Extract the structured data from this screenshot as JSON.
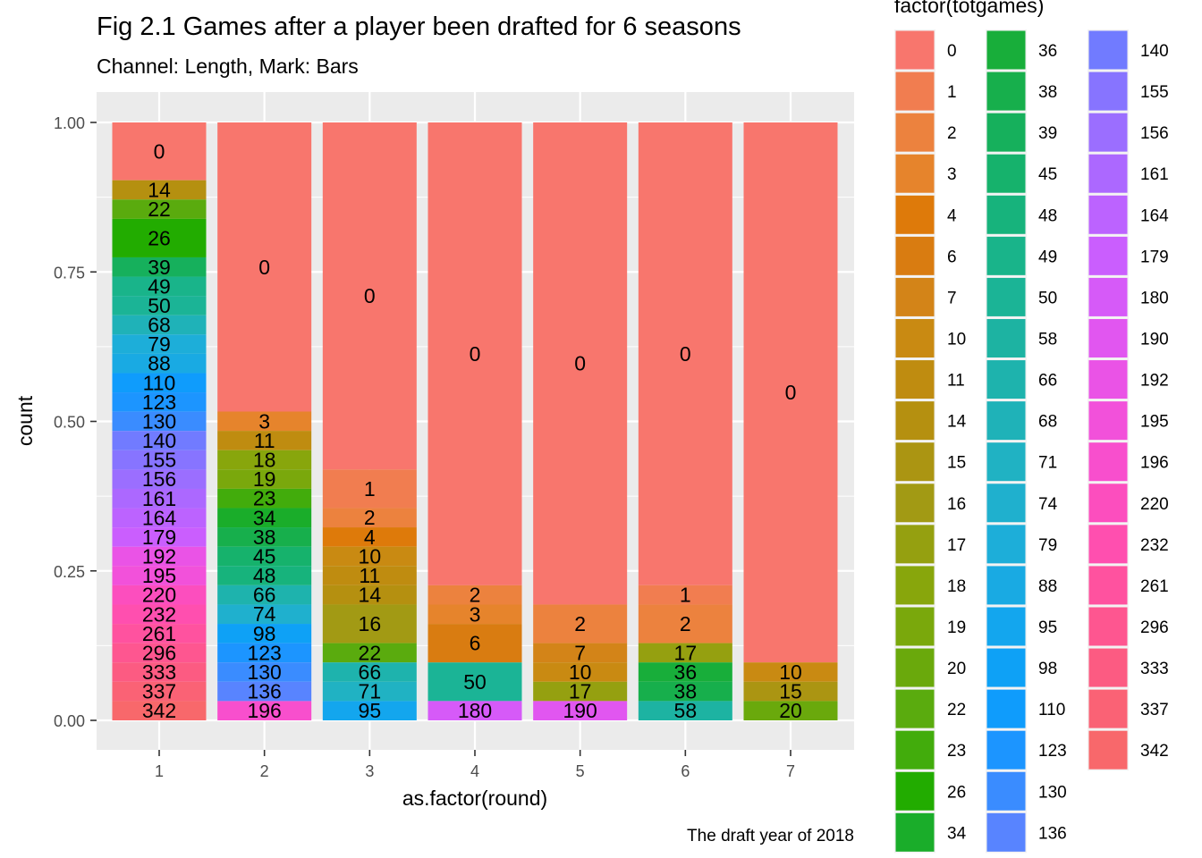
{
  "chart_data": {
    "type": "bar",
    "stacking": "fill",
    "title": "Fig 2.1 Games after a player been drafted for 6 seasons",
    "subtitle": "Channel: Length, Mark: Bars",
    "xlabel": "as.factor(round)",
    "ylabel": "count",
    "caption": "The draft year of 2018",
    "ylim": [
      0,
      1
    ],
    "y_ticks": [
      "0.00",
      "0.25",
      "0.50",
      "0.75",
      "1.00"
    ],
    "categories": [
      "1",
      "2",
      "3",
      "4",
      "5",
      "6",
      "7"
    ],
    "grid": true,
    "legend": {
      "title": "factor(totgames)",
      "placement": "right",
      "columns": 3,
      "entries": [
        {
          "label": "0",
          "color": "#F8766D"
        },
        {
          "label": "1",
          "color": "#F17D50"
        },
        {
          "label": "2",
          "color": "#EC823E"
        },
        {
          "label": "3",
          "color": "#E6842C"
        },
        {
          "label": "4",
          "color": "#DE7A0A"
        },
        {
          "label": "6",
          "color": "#D97C11"
        },
        {
          "label": "7",
          "color": "#D38418"
        },
        {
          "label": "10",
          "color": "#C98A12"
        },
        {
          "label": "11",
          "color": "#BF8C10"
        },
        {
          "label": "14",
          "color": "#B59010"
        },
        {
          "label": "15",
          "color": "#AB9512"
        },
        {
          "label": "16",
          "color": "#A29A14"
        },
        {
          "label": "17",
          "color": "#95A010"
        },
        {
          "label": "18",
          "color": "#88A60C"
        },
        {
          "label": "19",
          "color": "#7AA80C"
        },
        {
          "label": "20",
          "color": "#6AA90C"
        },
        {
          "label": "22",
          "color": "#5AAB0E"
        },
        {
          "label": "23",
          "color": "#42AC0C"
        },
        {
          "label": "26",
          "color": "#22AC00"
        },
        {
          "label": "34",
          "color": "#1AAD2A"
        },
        {
          "label": "36",
          "color": "#18AE3A"
        },
        {
          "label": "38",
          "color": "#17AF4C"
        },
        {
          "label": "39",
          "color": "#16B05C"
        },
        {
          "label": "45",
          "color": "#16B26C"
        },
        {
          "label": "48",
          "color": "#17B37C"
        },
        {
          "label": "49",
          "color": "#19B48A"
        },
        {
          "label": "50",
          "color": "#1BB496"
        },
        {
          "label": "58",
          "color": "#1DB3A2"
        },
        {
          "label": "66",
          "color": "#1EB3AD"
        },
        {
          "label": "68",
          "color": "#1FB2B8"
        },
        {
          "label": "71",
          "color": "#20B2C3"
        },
        {
          "label": "74",
          "color": "#1FB0CE"
        },
        {
          "label": "79",
          "color": "#1DAED9"
        },
        {
          "label": "88",
          "color": "#19AAE3"
        },
        {
          "label": "95",
          "color": "#13A6EE"
        },
        {
          "label": "98",
          "color": "#0EA1F6"
        },
        {
          "label": "110",
          "color": "#0F9CFC"
        },
        {
          "label": "123",
          "color": "#1C95FF"
        },
        {
          "label": "130",
          "color": "#3A8CFF"
        },
        {
          "label": "136",
          "color": "#5884FF"
        },
        {
          "label": "140",
          "color": "#717BFF"
        },
        {
          "label": "155",
          "color": "#8774FF"
        },
        {
          "label": "156",
          "color": "#9B6EFF"
        },
        {
          "label": "161",
          "color": "#AC68FF"
        },
        {
          "label": "164",
          "color": "#BC63FF"
        },
        {
          "label": "179",
          "color": "#CA5EFE"
        },
        {
          "label": "180",
          "color": "#D65AF8"
        },
        {
          "label": "190",
          "color": "#E156F0"
        },
        {
          "label": "192",
          "color": "#EA53E6"
        },
        {
          "label": "195",
          "color": "#F251DA"
        },
        {
          "label": "196",
          "color": "#F84FCD"
        },
        {
          "label": "220",
          "color": "#FC4EBE"
        },
        {
          "label": "232",
          "color": "#FF4FAF"
        },
        {
          "label": "261",
          "color": "#FF529F"
        },
        {
          "label": "296",
          "color": "#FE5690"
        },
        {
          "label": "333",
          "color": "#FC5B82"
        },
        {
          "label": "337",
          "color": "#FA6275"
        },
        {
          "label": "342",
          "color": "#F8686B"
        }
      ]
    },
    "series": [
      {
        "category": "1",
        "segments": [
          {
            "label": "0",
            "value": 0.0968
          },
          {
            "label": "14",
            "value": 0.0323
          },
          {
            "label": "22",
            "value": 0.0323
          },
          {
            "label": "26",
            "value": 0.0645
          },
          {
            "label": "39",
            "value": 0.0323
          },
          {
            "label": "49",
            "value": 0.0323
          },
          {
            "label": "50",
            "value": 0.0323
          },
          {
            "label": "68",
            "value": 0.0323
          },
          {
            "label": "79",
            "value": 0.0323
          },
          {
            "label": "88",
            "value": 0.0323
          },
          {
            "label": "110",
            "value": 0.0323
          },
          {
            "label": "123",
            "value": 0.0323
          },
          {
            "label": "130",
            "value": 0.0323
          },
          {
            "label": "140",
            "value": 0.0323
          },
          {
            "label": "155",
            "value": 0.0323
          },
          {
            "label": "156",
            "value": 0.0323
          },
          {
            "label": "161",
            "value": 0.0323
          },
          {
            "label": "164",
            "value": 0.0323
          },
          {
            "label": "179",
            "value": 0.0323
          },
          {
            "label": "192",
            "value": 0.0323
          },
          {
            "label": "195",
            "value": 0.0323
          },
          {
            "label": "220",
            "value": 0.0323
          },
          {
            "label": "232",
            "value": 0.0323
          },
          {
            "label": "261",
            "value": 0.0323
          },
          {
            "label": "296",
            "value": 0.0323
          },
          {
            "label": "333",
            "value": 0.0323
          },
          {
            "label": "337",
            "value": 0.0323
          },
          {
            "label": "342",
            "value": 0.0323
          }
        ]
      },
      {
        "category": "2",
        "segments": [
          {
            "label": "0",
            "value": 0.4839
          },
          {
            "label": "3",
            "value": 0.0323
          },
          {
            "label": "11",
            "value": 0.0323
          },
          {
            "label": "18",
            "value": 0.0323
          },
          {
            "label": "19",
            "value": 0.0323
          },
          {
            "label": "23",
            "value": 0.0323
          },
          {
            "label": "34",
            "value": 0.0323
          },
          {
            "label": "38",
            "value": 0.0323
          },
          {
            "label": "45",
            "value": 0.0323
          },
          {
            "label": "48",
            "value": 0.0323
          },
          {
            "label": "66",
            "value": 0.0323
          },
          {
            "label": "74",
            "value": 0.0323
          },
          {
            "label": "98",
            "value": 0.0323
          },
          {
            "label": "123",
            "value": 0.0323
          },
          {
            "label": "130",
            "value": 0.0323
          },
          {
            "label": "136",
            "value": 0.0323
          },
          {
            "label": "196",
            "value": 0.0323
          }
        ]
      },
      {
        "category": "3",
        "segments": [
          {
            "label": "0",
            "value": 0.5806
          },
          {
            "label": "1",
            "value": 0.0645
          },
          {
            "label": "2",
            "value": 0.0323
          },
          {
            "label": "4",
            "value": 0.0323
          },
          {
            "label": "10",
            "value": 0.0323
          },
          {
            "label": "11",
            "value": 0.0323
          },
          {
            "label": "14",
            "value": 0.0323
          },
          {
            "label": "16",
            "value": 0.0645
          },
          {
            "label": "22",
            "value": 0.0323
          },
          {
            "label": "66",
            "value": 0.0323
          },
          {
            "label": "71",
            "value": 0.0323
          },
          {
            "label": "95",
            "value": 0.0323
          }
        ]
      },
      {
        "category": "4",
        "segments": [
          {
            "label": "0",
            "value": 0.7742
          },
          {
            "label": "2",
            "value": 0.0323
          },
          {
            "label": "3",
            "value": 0.0323
          },
          {
            "label": "6",
            "value": 0.0645
          },
          {
            "label": "50",
            "value": 0.0645
          },
          {
            "label": "180",
            "value": 0.0323
          }
        ]
      },
      {
        "category": "5",
        "segments": [
          {
            "label": "0",
            "value": 0.8065
          },
          {
            "label": "2",
            "value": 0.0645
          },
          {
            "label": "7",
            "value": 0.0323
          },
          {
            "label": "10",
            "value": 0.0323
          },
          {
            "label": "17",
            "value": 0.0323
          },
          {
            "label": "190",
            "value": 0.0323
          }
        ]
      },
      {
        "category": "6",
        "segments": [
          {
            "label": "0",
            "value": 0.7742
          },
          {
            "label": "1",
            "value": 0.0323
          },
          {
            "label": "2",
            "value": 0.0645
          },
          {
            "label": "17",
            "value": 0.0323
          },
          {
            "label": "36",
            "value": 0.0323
          },
          {
            "label": "38",
            "value": 0.0323
          },
          {
            "label": "58",
            "value": 0.0323
          }
        ]
      },
      {
        "category": "7",
        "segments": [
          {
            "label": "0",
            "value": 0.9032
          },
          {
            "label": "10",
            "value": 0.0323
          },
          {
            "label": "15",
            "value": 0.0323
          },
          {
            "label": "20",
            "value": 0.0323
          }
        ]
      }
    ]
  }
}
